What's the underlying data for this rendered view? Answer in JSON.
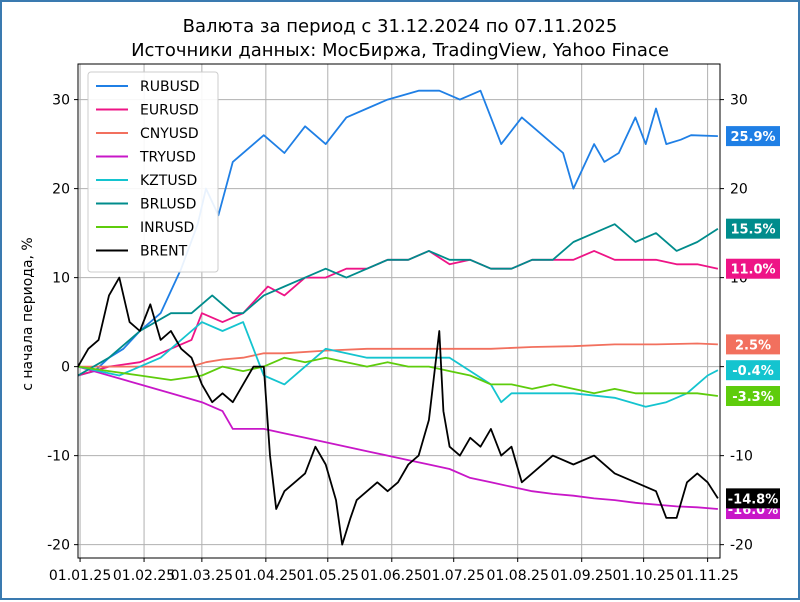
{
  "chart_data": {
    "type": "line",
    "title": "Валюта за период с 31.12.2024 по 07.11.2025",
    "subtitle": "Источники данных: МосБиржа, TradingView, Yahoo Finace",
    "xlabel": "",
    "ylabel": "с начала периода, %",
    "ylim": [
      -21.5,
      34
    ],
    "y_ticks": [
      -20,
      -10,
      0,
      10,
      20,
      30
    ],
    "x_ticks": [
      "01.01.25",
      "01.02.25",
      "01.03.25",
      "01.04.25",
      "01.05.25",
      "01.06.25",
      "01.07.25",
      "01.08.25",
      "01.09.25",
      "01.10.25",
      "01.11.25"
    ],
    "x_range": [
      "2024-12-31",
      "2025-11-07"
    ],
    "grid": true,
    "legend_position": "top-left",
    "series": [
      {
        "name": "RUBUSD",
        "color": "#1f7fe5",
        "end_label": "25.9%",
        "values": [
          [
            0,
            -1
          ],
          [
            8,
            -0.5
          ],
          [
            15,
            1
          ],
          [
            22,
            2
          ],
          [
            30,
            4
          ],
          [
            40,
            6
          ],
          [
            50,
            11
          ],
          [
            58,
            16
          ],
          [
            62,
            20
          ],
          [
            68,
            17
          ],
          [
            75,
            23
          ],
          [
            90,
            26
          ],
          [
            100,
            24
          ],
          [
            110,
            27
          ],
          [
            120,
            25
          ],
          [
            130,
            28
          ],
          [
            140,
            29
          ],
          [
            150,
            30
          ],
          [
            165,
            31
          ],
          [
            175,
            31
          ],
          [
            185,
            30
          ],
          [
            195,
            31
          ],
          [
            200,
            28
          ],
          [
            205,
            25
          ],
          [
            215,
            28
          ],
          [
            225,
            26
          ],
          [
            235,
            24
          ],
          [
            240,
            20
          ],
          [
            250,
            25
          ],
          [
            255,
            23
          ],
          [
            262,
            24
          ],
          [
            270,
            28
          ],
          [
            275,
            25
          ],
          [
            280,
            29
          ],
          [
            285,
            25
          ],
          [
            292,
            25.5
          ],
          [
            297,
            26
          ],
          [
            310,
            25.9
          ]
        ]
      },
      {
        "name": "EURUSD",
        "color": "#ee1486",
        "end_label": "11.0%",
        "values": [
          [
            0,
            -1
          ],
          [
            15,
            0
          ],
          [
            30,
            0.5
          ],
          [
            45,
            2
          ],
          [
            55,
            3
          ],
          [
            60,
            6
          ],
          [
            70,
            5
          ],
          [
            80,
            6
          ],
          [
            92,
            9
          ],
          [
            100,
            8
          ],
          [
            110,
            10
          ],
          [
            120,
            10
          ],
          [
            130,
            11
          ],
          [
            140,
            11
          ],
          [
            150,
            12
          ],
          [
            160,
            12
          ],
          [
            170,
            13
          ],
          [
            180,
            11.5
          ],
          [
            190,
            12
          ],
          [
            200,
            11
          ],
          [
            210,
            11
          ],
          [
            220,
            12
          ],
          [
            230,
            12
          ],
          [
            240,
            12
          ],
          [
            250,
            13
          ],
          [
            260,
            12
          ],
          [
            270,
            12
          ],
          [
            280,
            12
          ],
          [
            290,
            11.5
          ],
          [
            300,
            11.5
          ],
          [
            310,
            11
          ]
        ]
      },
      {
        "name": "CNYUSD",
        "color": "#f2705e",
        "end_label": "2.5%",
        "values": [
          [
            0,
            0
          ],
          [
            20,
            0
          ],
          [
            40,
            0
          ],
          [
            55,
            0
          ],
          [
            62,
            0.5
          ],
          [
            70,
            0.8
          ],
          [
            80,
            1
          ],
          [
            90,
            1.5
          ],
          [
            100,
            1.5
          ],
          [
            120,
            1.8
          ],
          [
            140,
            2
          ],
          [
            160,
            2
          ],
          [
            180,
            2
          ],
          [
            200,
            2
          ],
          [
            220,
            2.2
          ],
          [
            240,
            2.3
          ],
          [
            260,
            2.5
          ],
          [
            280,
            2.5
          ],
          [
            300,
            2.6
          ],
          [
            310,
            2.5
          ]
        ]
      },
      {
        "name": "TRYUSD",
        "color": "#c817c8",
        "end_label": "-16.0%",
        "values": [
          [
            0,
            0
          ],
          [
            15,
            -1
          ],
          [
            30,
            -2
          ],
          [
            45,
            -3
          ],
          [
            60,
            -4
          ],
          [
            70,
            -5
          ],
          [
            75,
            -7
          ],
          [
            90,
            -7
          ],
          [
            100,
            -7.5
          ],
          [
            110,
            -8
          ],
          [
            120,
            -8.5
          ],
          [
            130,
            -9
          ],
          [
            140,
            -9.5
          ],
          [
            150,
            -10
          ],
          [
            160,
            -10.5
          ],
          [
            170,
            -11
          ],
          [
            180,
            -11.5
          ],
          [
            190,
            -12.5
          ],
          [
            200,
            -13
          ],
          [
            210,
            -13.5
          ],
          [
            220,
            -14
          ],
          [
            230,
            -14.3
          ],
          [
            240,
            -14.5
          ],
          [
            250,
            -14.8
          ],
          [
            260,
            -15
          ],
          [
            270,
            -15.3
          ],
          [
            280,
            -15.5
          ],
          [
            290,
            -15.7
          ],
          [
            300,
            -15.8
          ],
          [
            310,
            -16
          ]
        ]
      },
      {
        "name": "KZTUSD",
        "color": "#14c4cf",
        "end_label": "-0.4%",
        "values": [
          [
            0,
            0
          ],
          [
            20,
            -1
          ],
          [
            40,
            1
          ],
          [
            55,
            4
          ],
          [
            60,
            5
          ],
          [
            70,
            4
          ],
          [
            80,
            5
          ],
          [
            90,
            -1
          ],
          [
            100,
            -2
          ],
          [
            110,
            0
          ],
          [
            120,
            2
          ],
          [
            140,
            1
          ],
          [
            160,
            1
          ],
          [
            180,
            1
          ],
          [
            200,
            -2
          ],
          [
            205,
            -4
          ],
          [
            210,
            -3
          ],
          [
            220,
            -3
          ],
          [
            240,
            -3
          ],
          [
            260,
            -3.5
          ],
          [
            275,
            -4.5
          ],
          [
            285,
            -4
          ],
          [
            295,
            -3
          ],
          [
            305,
            -1
          ],
          [
            310,
            -0.4
          ]
        ]
      },
      {
        "name": "BRLUSD",
        "color": "#008c8c",
        "end_label": "15.5%",
        "values": [
          [
            0,
            -1
          ],
          [
            15,
            1
          ],
          [
            30,
            4
          ],
          [
            45,
            6
          ],
          [
            55,
            6
          ],
          [
            65,
            8
          ],
          [
            75,
            6
          ],
          [
            80,
            6
          ],
          [
            90,
            8
          ],
          [
            100,
            9
          ],
          [
            110,
            10
          ],
          [
            120,
            11
          ],
          [
            130,
            10
          ],
          [
            140,
            11
          ],
          [
            150,
            12
          ],
          [
            160,
            12
          ],
          [
            170,
            13
          ],
          [
            180,
            12
          ],
          [
            190,
            12
          ],
          [
            200,
            11
          ],
          [
            210,
            11
          ],
          [
            220,
            12
          ],
          [
            230,
            12
          ],
          [
            240,
            14
          ],
          [
            250,
            15
          ],
          [
            260,
            16
          ],
          [
            270,
            14
          ],
          [
            280,
            15
          ],
          [
            290,
            13
          ],
          [
            300,
            14
          ],
          [
            310,
            15.5
          ]
        ]
      },
      {
        "name": "INRUSD",
        "color": "#5ecc0c",
        "end_label": "-3.3%",
        "values": [
          [
            0,
            0
          ],
          [
            15,
            -0.5
          ],
          [
            30,
            -1
          ],
          [
            45,
            -1.5
          ],
          [
            60,
            -1
          ],
          [
            70,
            0
          ],
          [
            80,
            -0.5
          ],
          [
            90,
            0
          ],
          [
            100,
            1
          ],
          [
            110,
            0.5
          ],
          [
            120,
            1
          ],
          [
            130,
            0.5
          ],
          [
            140,
            0
          ],
          [
            150,
            0.5
          ],
          [
            160,
            0
          ],
          [
            170,
            0
          ],
          [
            180,
            -0.5
          ],
          [
            190,
            -1
          ],
          [
            200,
            -2
          ],
          [
            210,
            -2
          ],
          [
            220,
            -2.5
          ],
          [
            230,
            -2
          ],
          [
            240,
            -2.5
          ],
          [
            250,
            -3
          ],
          [
            260,
            -2.5
          ],
          [
            270,
            -3
          ],
          [
            280,
            -3
          ],
          [
            290,
            -3
          ],
          [
            300,
            -3
          ],
          [
            310,
            -3.3
          ]
        ]
      },
      {
        "name": "BRENT",
        "color": "#000000",
        "end_label": "-14.8%",
        "values": [
          [
            0,
            0
          ],
          [
            5,
            2
          ],
          [
            10,
            3
          ],
          [
            15,
            8
          ],
          [
            20,
            10
          ],
          [
            25,
            5
          ],
          [
            30,
            4
          ],
          [
            35,
            7
          ],
          [
            40,
            3
          ],
          [
            45,
            4
          ],
          [
            50,
            2
          ],
          [
            55,
            1
          ],
          [
            60,
            -2
          ],
          [
            65,
            -4
          ],
          [
            70,
            -3
          ],
          [
            75,
            -4
          ],
          [
            80,
            -2
          ],
          [
            85,
            0
          ],
          [
            90,
            0
          ],
          [
            93,
            -10
          ],
          [
            96,
            -16
          ],
          [
            100,
            -14
          ],
          [
            105,
            -13
          ],
          [
            110,
            -12
          ],
          [
            115,
            -9
          ],
          [
            120,
            -11
          ],
          [
            125,
            -15
          ],
          [
            128,
            -20
          ],
          [
            132,
            -17
          ],
          [
            135,
            -15
          ],
          [
            140,
            -14
          ],
          [
            145,
            -13
          ],
          [
            150,
            -14
          ],
          [
            155,
            -13
          ],
          [
            160,
            -11
          ],
          [
            165,
            -10
          ],
          [
            170,
            -6
          ],
          [
            175,
            4
          ],
          [
            177,
            -5
          ],
          [
            180,
            -9
          ],
          [
            185,
            -10
          ],
          [
            190,
            -8
          ],
          [
            195,
            -9
          ],
          [
            200,
            -7
          ],
          [
            205,
            -10
          ],
          [
            210,
            -9
          ],
          [
            215,
            -13
          ],
          [
            220,
            -12
          ],
          [
            230,
            -10
          ],
          [
            240,
            -11
          ],
          [
            250,
            -10
          ],
          [
            260,
            -12
          ],
          [
            270,
            -13
          ],
          [
            280,
            -14
          ],
          [
            285,
            -17
          ],
          [
            290,
            -17
          ],
          [
            295,
            -13
          ],
          [
            300,
            -12
          ],
          [
            305,
            -13
          ],
          [
            310,
            -14.8
          ]
        ]
      }
    ]
  }
}
